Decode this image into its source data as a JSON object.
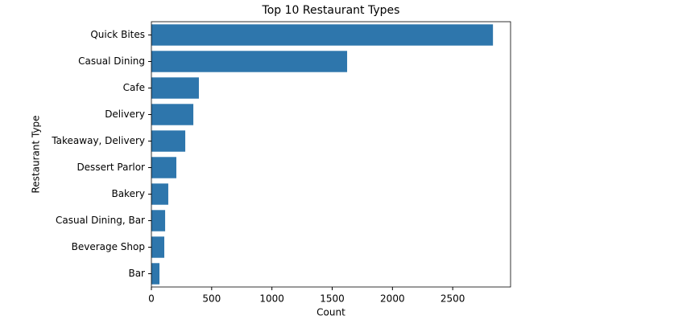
{
  "chart_data": {
    "type": "barh",
    "title": "Top 10 Restaurant Types",
    "x_label": "Count",
    "y_label": "Restaurant Type",
    "categories": [
      "Quick Bites",
      "Casual Dining",
      "Cafe",
      "Delivery",
      "Takeaway, Delivery",
      "Dessert Parlor",
      "Bakery",
      "Casual Dining, Bar",
      "Beverage Shop",
      "Bar"
    ],
    "values": [
      2834,
      1624,
      394,
      348,
      281,
      207,
      140,
      114,
      107,
      67
    ],
    "color": "#2e76ac",
    "xlim": [
      0,
      2980
    ],
    "xticks": [
      0,
      500,
      1000,
      1500,
      2000,
      2500
    ],
    "grid": false
  }
}
